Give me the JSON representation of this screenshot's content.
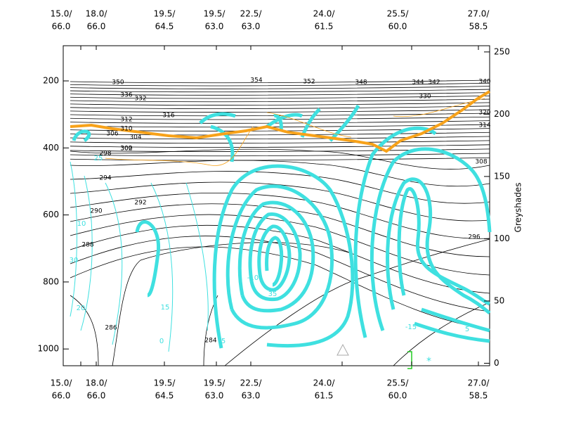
{
  "chart_data": {
    "type": "cross-section",
    "categories": [
      [
        "15.0/",
        "66.0"
      ],
      [
        "18.0/",
        "66.0"
      ],
      [
        "19.5/",
        "64.5"
      ],
      [
        "19.5/",
        "63.0"
      ],
      [
        "22.5/",
        "63.0"
      ],
      [
        "24.0/",
        "61.5"
      ],
      [
        "25.5/",
        "60.0"
      ],
      [
        "27.0/",
        "58.5"
      ]
    ],
    "ylim": [
      1050,
      95
    ],
    "yticks": [
      200,
      400,
      600,
      800,
      1000
    ],
    "y2lim": [
      -2,
      255
    ],
    "y2ticks": [
      0,
      50,
      100,
      150,
      200,
      250
    ],
    "y2label": "Greyshades",
    "annotations": [
      "350",
      "354",
      "352",
      "348",
      "344",
      "342",
      "340",
      "330",
      "336",
      "332",
      "316",
      "310",
      "306",
      "304",
      "302",
      "300",
      "298",
      "296",
      "294",
      "292",
      "290",
      "288",
      "286",
      "284",
      "312",
      "314",
      "308",
      "320",
      "10",
      "15",
      "20",
      "25",
      "30",
      "35",
      "-10",
      "-15",
      "5",
      "0",
      "5"
    ]
  }
}
